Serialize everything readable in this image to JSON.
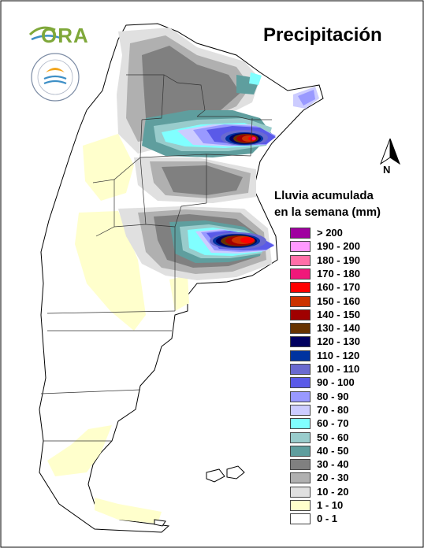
{
  "map": {
    "title": "Precipitación",
    "legend_title_line1": "Lluvia acumulada",
    "legend_title_line2": "en la semana (mm)",
    "north_label": "N",
    "logo_text": "ORA",
    "legend": [
      {
        "label": "> 200",
        "color": "#a000a0"
      },
      {
        "label": "190 - 200",
        "color": "#ff99ff"
      },
      {
        "label": "180 - 190",
        "color": "#ff6fa8"
      },
      {
        "label": "170 - 180",
        "color": "#f0187a"
      },
      {
        "label": "160 - 170",
        "color": "#ff0000"
      },
      {
        "label": "150 - 160",
        "color": "#cc3300"
      },
      {
        "label": "140 - 150",
        "color": "#a00000"
      },
      {
        "label": "130 - 140",
        "color": "#663300"
      },
      {
        "label": "120 - 130",
        "color": "#000060"
      },
      {
        "label": "110 - 120",
        "color": "#0033a0"
      },
      {
        "label": "100 - 110",
        "color": "#6a6ad0"
      },
      {
        "label": "90 - 100",
        "color": "#5a5ae8"
      },
      {
        "label": "80 - 90",
        "color": "#9999ff"
      },
      {
        "label": "70 - 80",
        "color": "#ccccff"
      },
      {
        "label": "60 - 70",
        "color": "#80ffff"
      },
      {
        "label": "50 - 60",
        "color": "#99cccc"
      },
      {
        "label": "40 - 50",
        "color": "#5f9e9e"
      },
      {
        "label": "30 - 40",
        "color": "#808080"
      },
      {
        "label": "20 - 30",
        "color": "#b0b0b0"
      },
      {
        "label": "10 - 20",
        "color": "#e0e0e0"
      },
      {
        "label": "1 - 10",
        "color": "#ffffcc"
      },
      {
        "label": "0 - 1",
        "color": "#ffffff"
      }
    ]
  }
}
